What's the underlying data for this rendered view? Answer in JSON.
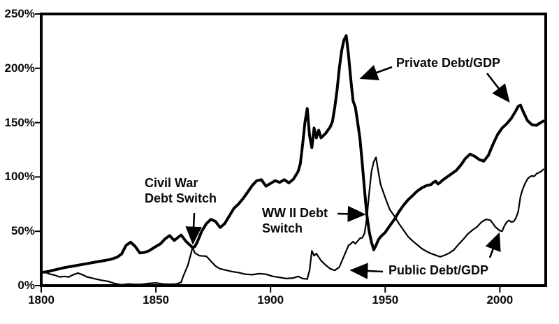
{
  "figure": {
    "description": "Two-line historical chart of U.S. Private Debt/GDP (thick line) and Public Debt/GDP (thin line), 1800 to late 2010s"
  },
  "annotations": {
    "civil_war": {
      "line1": "Civil War",
      "line2": "Debt Switch"
    },
    "wwii": {
      "line1": "WW II Debt",
      "line2": "Switch"
    },
    "private_label": {
      "text": "Private Debt/GDP"
    },
    "public_label": {
      "text": "Public Debt/GDP"
    }
  },
  "colors": {
    "line": "#000000",
    "text": "#0a0a0a",
    "background": "#ffffff"
  },
  "chart_data": {
    "type": "line",
    "title": "",
    "xlabel": "",
    "ylabel": "",
    "grid": false,
    "legend_position": "none (direct labels with arrows)",
    "x_axis": {
      "range": [
        1800,
        2020
      ],
      "ticks": [
        1800,
        1850,
        1900,
        1950,
        2000
      ]
    },
    "y_axis": {
      "range": [
        0,
        250
      ],
      "ticks": [
        0,
        50,
        100,
        150,
        200,
        250
      ],
      "tick_labels": [
        "0%",
        "50%",
        "100%",
        "150%",
        "200%",
        "250%"
      ]
    },
    "series": [
      {
        "name": "Private Debt/GDP",
        "style": "thick",
        "points": [
          [
            1800,
            12
          ],
          [
            1803,
            13
          ],
          [
            1806,
            14.5
          ],
          [
            1810,
            16.5
          ],
          [
            1814,
            18
          ],
          [
            1818,
            19.5
          ],
          [
            1822,
            21
          ],
          [
            1826,
            22.5
          ],
          [
            1830,
            24
          ],
          [
            1833,
            26
          ],
          [
            1835,
            29
          ],
          [
            1837,
            37
          ],
          [
            1839,
            40
          ],
          [
            1841,
            36
          ],
          [
            1843,
            30
          ],
          [
            1845,
            30.5
          ],
          [
            1847,
            32
          ],
          [
            1850,
            36
          ],
          [
            1852,
            38.5
          ],
          [
            1854,
            43
          ],
          [
            1856,
            46
          ],
          [
            1858,
            41.5
          ],
          [
            1860,
            45
          ],
          [
            1861,
            46.5
          ],
          [
            1863,
            41
          ],
          [
            1865,
            37
          ],
          [
            1866,
            35
          ],
          [
            1867,
            36
          ],
          [
            1868,
            40
          ],
          [
            1870,
            50
          ],
          [
            1872,
            57
          ],
          [
            1874,
            61
          ],
          [
            1876,
            59
          ],
          [
            1878,
            53.5
          ],
          [
            1880,
            57
          ],
          [
            1882,
            64
          ],
          [
            1884,
            71
          ],
          [
            1886,
            75
          ],
          [
            1888,
            80
          ],
          [
            1890,
            86
          ],
          [
            1892,
            92
          ],
          [
            1894,
            96.5
          ],
          [
            1896,
            97.5
          ],
          [
            1898,
            91.5
          ],
          [
            1900,
            94
          ],
          [
            1902,
            96.5
          ],
          [
            1904,
            95
          ],
          [
            1906,
            97.5
          ],
          [
            1908,
            94.5
          ],
          [
            1910,
            98
          ],
          [
            1912,
            105
          ],
          [
            1913,
            112
          ],
          [
            1914,
            130
          ],
          [
            1915,
            150
          ],
          [
            1916,
            163
          ],
          [
            1917,
            138
          ],
          [
            1918,
            127
          ],
          [
            1919,
            145
          ],
          [
            1920,
            136
          ],
          [
            1921,
            143
          ],
          [
            1922,
            136
          ],
          [
            1924,
            140
          ],
          [
            1926,
            146
          ],
          [
            1927,
            151
          ],
          [
            1928,
            164
          ],
          [
            1929,
            180
          ],
          [
            1930,
            200
          ],
          [
            1931,
            216
          ],
          [
            1932,
            226
          ],
          [
            1933,
            230
          ],
          [
            1934,
            212
          ],
          [
            1935,
            190
          ],
          [
            1936,
            170
          ],
          [
            1937,
            164
          ],
          [
            1938,
            150
          ],
          [
            1939,
            135
          ],
          [
            1940,
            112
          ],
          [
            1941,
            88
          ],
          [
            1942,
            65
          ],
          [
            1943,
            50
          ],
          [
            1944,
            40
          ],
          [
            1945,
            33
          ],
          [
            1946,
            37
          ],
          [
            1947,
            42
          ],
          [
            1948,
            45
          ],
          [
            1950,
            49
          ],
          [
            1952,
            55
          ],
          [
            1954,
            61
          ],
          [
            1956,
            68
          ],
          [
            1958,
            74
          ],
          [
            1960,
            79
          ],
          [
            1962,
            83
          ],
          [
            1964,
            87
          ],
          [
            1966,
            90
          ],
          [
            1968,
            92
          ],
          [
            1970,
            93
          ],
          [
            1971,
            95
          ],
          [
            1972,
            96
          ],
          [
            1973,
            93.5
          ],
          [
            1974,
            95
          ],
          [
            1975,
            97
          ],
          [
            1977,
            100
          ],
          [
            1979,
            103
          ],
          [
            1981,
            106
          ],
          [
            1983,
            111
          ],
          [
            1985,
            117
          ],
          [
            1987,
            121
          ],
          [
            1989,
            119
          ],
          [
            1991,
            116
          ],
          [
            1993,
            114.5
          ],
          [
            1995,
            120
          ],
          [
            1997,
            130
          ],
          [
            1999,
            139
          ],
          [
            2001,
            145
          ],
          [
            2003,
            149
          ],
          [
            2005,
            154
          ],
          [
            2007,
            161
          ],
          [
            2008,
            165
          ],
          [
            2009,
            166
          ],
          [
            2010,
            161
          ],
          [
            2012,
            152
          ],
          [
            2014,
            148
          ],
          [
            2016,
            147.5
          ],
          [
            2017,
            149
          ],
          [
            2019,
            151.5
          ]
        ]
      },
      {
        "name": "Public Debt/GDP",
        "style": "thin",
        "points": [
          [
            1800,
            13.5
          ],
          [
            1802,
            12
          ],
          [
            1804,
            10.5
          ],
          [
            1806,
            9.5
          ],
          [
            1808,
            8
          ],
          [
            1810,
            8.5
          ],
          [
            1812,
            8
          ],
          [
            1814,
            10
          ],
          [
            1816,
            11.5
          ],
          [
            1818,
            10
          ],
          [
            1820,
            8
          ],
          [
            1823,
            6.5
          ],
          [
            1826,
            5
          ],
          [
            1829,
            4
          ],
          [
            1832,
            2
          ],
          [
            1835,
            0.8
          ],
          [
            1838,
            1.5
          ],
          [
            1841,
            1
          ],
          [
            1844,
            1.2
          ],
          [
            1847,
            2
          ],
          [
            1850,
            2.5
          ],
          [
            1853,
            1.5
          ],
          [
            1856,
            1.2
          ],
          [
            1859,
            1.5
          ],
          [
            1861,
            3
          ],
          [
            1862,
            9
          ],
          [
            1863,
            14
          ],
          [
            1864,
            19
          ],
          [
            1865,
            27
          ],
          [
            1866,
            35
          ],
          [
            1867,
            30
          ],
          [
            1869,
            27.5
          ],
          [
            1872,
            27
          ],
          [
            1874,
            22.5
          ],
          [
            1876,
            18
          ],
          [
            1878,
            15.5
          ],
          [
            1880,
            14.5
          ],
          [
            1883,
            13
          ],
          [
            1886,
            12
          ],
          [
            1889,
            10.5
          ],
          [
            1892,
            10
          ],
          [
            1895,
            11
          ],
          [
            1898,
            10.5
          ],
          [
            1901,
            8.5
          ],
          [
            1904,
            7.5
          ],
          [
            1907,
            6.5
          ],
          [
            1910,
            7
          ],
          [
            1912,
            8.5
          ],
          [
            1914,
            6.5
          ],
          [
            1916,
            6
          ],
          [
            1917,
            14
          ],
          [
            1918,
            32
          ],
          [
            1919,
            27.5
          ],
          [
            1920,
            29.5
          ],
          [
            1922,
            23
          ],
          [
            1924,
            19
          ],
          [
            1926,
            15.5
          ],
          [
            1928,
            14
          ],
          [
            1930,
            17
          ],
          [
            1932,
            27
          ],
          [
            1934,
            37
          ],
          [
            1935,
            38.5
          ],
          [
            1936,
            40.5
          ],
          [
            1937,
            38.5
          ],
          [
            1938,
            41
          ],
          [
            1939,
            43.5
          ],
          [
            1940,
            44
          ],
          [
            1941,
            48
          ],
          [
            1942,
            62
          ],
          [
            1943,
            85
          ],
          [
            1944,
            105
          ],
          [
            1945,
            114
          ],
          [
            1946,
            118
          ],
          [
            1947,
            105
          ],
          [
            1948,
            93
          ],
          [
            1950,
            81
          ],
          [
            1952,
            70
          ],
          [
            1954,
            64
          ],
          [
            1956,
            57
          ],
          [
            1958,
            51
          ],
          [
            1960,
            45
          ],
          [
            1962,
            41
          ],
          [
            1964,
            37.5
          ],
          [
            1966,
            34
          ],
          [
            1968,
            31.5
          ],
          [
            1970,
            29.5
          ],
          [
            1972,
            28
          ],
          [
            1974,
            26.5
          ],
          [
            1976,
            28
          ],
          [
            1978,
            30
          ],
          [
            1980,
            33
          ],
          [
            1982,
            38
          ],
          [
            1984,
            42.5
          ],
          [
            1986,
            47.5
          ],
          [
            1988,
            51
          ],
          [
            1990,
            54
          ],
          [
            1992,
            58.5
          ],
          [
            1994,
            61
          ],
          [
            1996,
            60
          ],
          [
            1998,
            54
          ],
          [
            2000,
            50.5
          ],
          [
            2001,
            50
          ],
          [
            2002,
            55
          ],
          [
            2003,
            58.5
          ],
          [
            2004,
            60
          ],
          [
            2005,
            58.5
          ],
          [
            2006,
            59
          ],
          [
            2007,
            62
          ],
          [
            2008,
            68
          ],
          [
            2009,
            82
          ],
          [
            2010,
            89
          ],
          [
            2011,
            94
          ],
          [
            2012,
            98
          ],
          [
            2013,
            100
          ],
          [
            2014,
            101
          ],
          [
            2015,
            100.5
          ],
          [
            2016,
            103
          ],
          [
            2018,
            105
          ],
          [
            2019,
            107
          ]
        ]
      }
    ]
  }
}
